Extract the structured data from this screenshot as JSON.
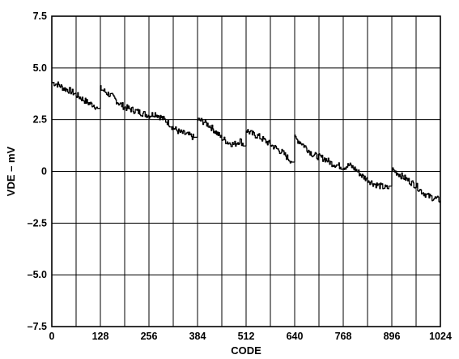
{
  "chart_data": {
    "type": "line",
    "title": "",
    "xlabel": "CODE",
    "ylabel": "VDE – mV",
    "xlim": [
      0,
      1024
    ],
    "ylim": [
      -7.5,
      7.5
    ],
    "x_ticks": [
      0,
      128,
      256,
      384,
      512,
      640,
      768,
      896,
      1024
    ],
    "x_tick_labels": [
      "0",
      "128",
      "256",
      "384",
      "512",
      "640",
      "768",
      "896",
      "1024"
    ],
    "y_ticks": [
      7.5,
      5.0,
      2.5,
      0,
      -2.5,
      -5.0,
      -7.5
    ],
    "y_tick_labels": [
      "7.5",
      "5.0",
      "2.5",
      "0",
      "–2.5",
      "–5.0",
      "–7.5"
    ],
    "grid": true,
    "legend": "none",
    "series": [
      {
        "x": [
          0,
          16,
          32,
          48,
          64,
          80,
          96,
          112,
          120,
          128,
          144,
          160,
          176,
          192,
          208,
          224,
          240,
          256,
          272,
          288,
          304,
          320,
          336,
          352,
          368,
          376,
          384,
          400,
          416,
          432,
          448,
          464,
          480,
          496,
          504,
          512,
          528,
          544,
          560,
          576,
          592,
          608,
          624,
          632,
          640,
          656,
          672,
          688,
          704,
          720,
          736,
          752,
          768,
          784,
          800,
          816,
          832,
          848,
          864,
          880,
          888,
          896,
          912,
          928,
          944,
          960,
          976,
          992,
          1008,
          1024
        ],
        "y": [
          4.3,
          4.2,
          4.0,
          3.9,
          3.7,
          3.5,
          3.3,
          3.2,
          3.0,
          4.0,
          3.8,
          3.6,
          3.3,
          3.1,
          3.0,
          2.9,
          2.8,
          2.7,
          2.8,
          2.6,
          2.4,
          2.1,
          1.9,
          1.8,
          1.7,
          1.6,
          2.5,
          2.4,
          2.2,
          1.9,
          1.6,
          1.4,
          1.3,
          1.5,
          1.3,
          2.0,
          1.8,
          1.7,
          1.5,
          1.3,
          1.1,
          0.9,
          0.6,
          0.5,
          1.6,
          1.4,
          1.1,
          0.8,
          0.7,
          0.6,
          0.4,
          0.3,
          0.2,
          0.3,
          0.1,
          -0.2,
          -0.4,
          -0.6,
          -0.7,
          -0.8,
          -0.8,
          0.1,
          -0.1,
          -0.3,
          -0.5,
          -0.7,
          -1.0,
          -1.2,
          -1.3,
          -1.4
        ]
      }
    ]
  }
}
